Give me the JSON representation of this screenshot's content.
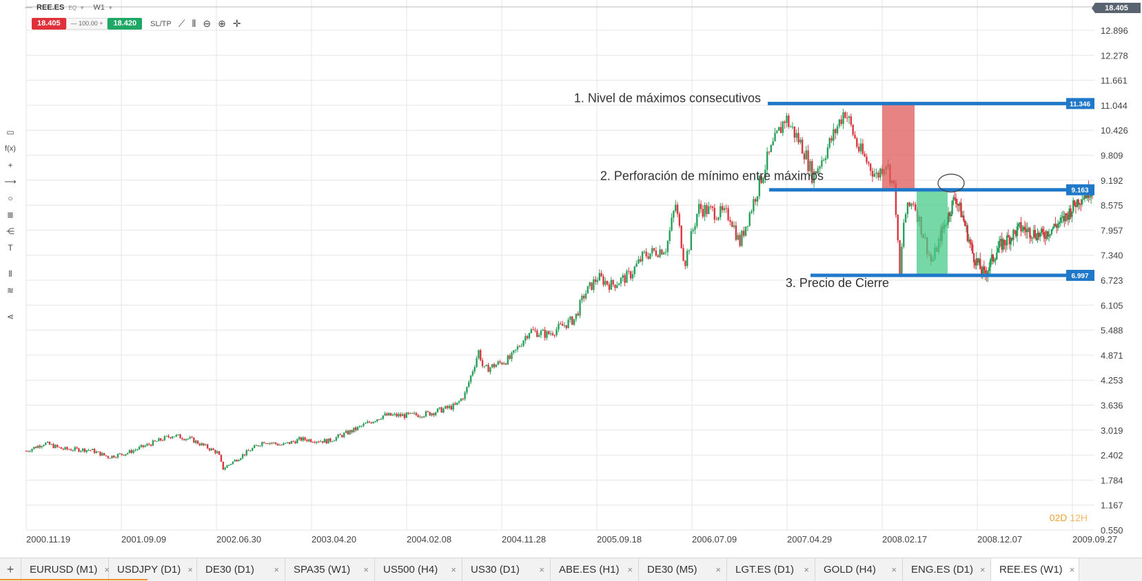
{
  "toolbar": {
    "symbol": "REE.ES",
    "symbol_type": "EQ",
    "timeframe": "W1",
    "sell_price": "18.405",
    "quantity": "100.00",
    "buy_price": "18.420",
    "sltp_label": "SL/TP",
    "current_price_tag": "18.405"
  },
  "tools": [
    "cursor-icon",
    "function-icon",
    "crosshair-icon",
    "line-icon",
    "circle-icon",
    "fibonacci-icon",
    "pitchfork-icon",
    "text-icon",
    "indicators-icon",
    "layers-icon",
    "share-icon"
  ],
  "timer": {
    "days": "02D",
    "hours": "12H"
  },
  "tabs": [
    {
      "label": "EURUSD (M1)",
      "active": false
    },
    {
      "label": "USDJPY (D1)",
      "active": false
    },
    {
      "label": "DE30 (D1)",
      "active": false
    },
    {
      "label": "SPA35 (W1)",
      "active": false
    },
    {
      "label": "US500 (H4)",
      "active": false
    },
    {
      "label": "US30 (D1)",
      "active": false
    },
    {
      "label": "ABE.ES (H1)",
      "active": false
    },
    {
      "label": "DE30 (M5)",
      "active": false
    },
    {
      "label": "LGT.ES (D1)",
      "active": false
    },
    {
      "label": "GOLD (H4)",
      "active": false
    },
    {
      "label": "ENG.ES (D1)",
      "active": false
    },
    {
      "label": "REE.ES (W1)",
      "active": true
    }
  ],
  "colors": {
    "up": "#27a05a",
    "down": "#d9363e",
    "level_line": "#1f78c8",
    "grid": "#e6e6e6",
    "red_zone": "#e05a5a",
    "green_zone": "#48c98a"
  },
  "chart_data": {
    "type": "candlestick",
    "ylim": [
      0.55,
      13.2
    ],
    "y_ticks": [
      "12.896",
      "12.278",
      "11.661",
      "11.044",
      "10.426",
      "9.809",
      "9.192",
      "8.575",
      "7.957",
      "7.340",
      "6.723",
      "6.105",
      "5.488",
      "4.871",
      "4.253",
      "3.636",
      "3.019",
      "2.402",
      "1.784",
      "1.167",
      "0.550"
    ],
    "x_ticks": [
      "2000.11.19",
      "2001.09.09",
      "2002.06.30",
      "2003.04.20",
      "2004.02.08",
      "2004.11.28",
      "2005.09.18",
      "2006.07.09",
      "2007.04.29",
      "2008.02.17",
      "2008.12.07",
      "2009.09.27"
    ],
    "price_path": [
      {
        "t": 0.0,
        "p": 2.55
      },
      {
        "t": 0.02,
        "p": 2.75
      },
      {
        "t": 0.04,
        "p": 2.6
      },
      {
        "t": 0.07,
        "p": 2.58
      },
      {
        "t": 0.09,
        "p": 2.4
      },
      {
        "t": 0.11,
        "p": 2.5
      },
      {
        "t": 0.16,
        "p": 2.95
      },
      {
        "t": 0.18,
        "p": 2.85
      },
      {
        "t": 0.21,
        "p": 2.5
      },
      {
        "t": 0.215,
        "p": 2.1
      },
      {
        "t": 0.24,
        "p": 2.5
      },
      {
        "t": 0.26,
        "p": 2.8
      },
      {
        "t": 0.28,
        "p": 2.7
      },
      {
        "t": 0.3,
        "p": 2.85
      },
      {
        "t": 0.33,
        "p": 2.8
      },
      {
        "t": 0.36,
        "p": 3.1
      },
      {
        "t": 0.39,
        "p": 3.45
      },
      {
        "t": 0.42,
        "p": 3.45
      },
      {
        "t": 0.44,
        "p": 3.5
      },
      {
        "t": 0.47,
        "p": 3.7
      },
      {
        "t": 0.48,
        "p": 4.0
      },
      {
        "t": 0.495,
        "p": 5.1
      },
      {
        "t": 0.5,
        "p": 4.6
      },
      {
        "t": 0.53,
        "p": 4.9
      },
      {
        "t": 0.55,
        "p": 5.6
      },
      {
        "t": 0.57,
        "p": 5.5
      },
      {
        "t": 0.6,
        "p": 5.9
      },
      {
        "t": 0.61,
        "p": 6.5
      },
      {
        "t": 0.625,
        "p": 6.95
      },
      {
        "t": 0.64,
        "p": 6.75
      },
      {
        "t": 0.66,
        "p": 7.0
      },
      {
        "t": 0.675,
        "p": 7.5
      },
      {
        "t": 0.7,
        "p": 7.7
      },
      {
        "t": 0.71,
        "p": 8.8
      },
      {
        "t": 0.72,
        "p": 7.3
      },
      {
        "t": 0.735,
        "p": 8.7
      },
      {
        "t": 0.77,
        "p": 8.5
      },
      {
        "t": 0.78,
        "p": 7.8
      },
      {
        "t": 0.79,
        "p": 8.5
      },
      {
        "t": 0.8,
        "p": 9.2
      },
      {
        "t": 0.81,
        "p": 9.9
      },
      {
        "t": 0.83,
        "p": 11.0
      },
      {
        "t": 0.85,
        "p": 10.2
      },
      {
        "t": 0.86,
        "p": 9.5
      },
      {
        "t": 0.88,
        "p": 10.4
      },
      {
        "t": 0.895,
        "p": 11.2
      },
      {
        "t": 0.91,
        "p": 10.2
      },
      {
        "t": 0.93,
        "p": 9.5
      },
      {
        "t": 0.94,
        "p": 9.9
      },
      {
        "t": 0.95,
        "p": 9.1
      },
      {
        "t": 0.955,
        "p": 6.9
      },
      {
        "t": 0.96,
        "p": 8.5
      },
      {
        "t": 0.97,
        "p": 8.9
      },
      {
        "t": 0.98,
        "p": 8.1
      },
      {
        "t": 0.99,
        "p": 7.3
      },
      {
        "t": 1.0,
        "p": 8.0
      }
    ],
    "right_segment": [
      {
        "t": 0.0,
        "p": 8.0
      },
      {
        "t": 0.04,
        "p": 9.0
      },
      {
        "t": 0.06,
        "p": 8.5
      },
      {
        "t": 0.09,
        "p": 7.5
      },
      {
        "t": 0.12,
        "p": 7.0
      },
      {
        "t": 0.16,
        "p": 7.7
      },
      {
        "t": 0.22,
        "p": 8.2
      },
      {
        "t": 0.28,
        "p": 8.0
      },
      {
        "t": 0.34,
        "p": 8.4
      },
      {
        "t": 0.38,
        "p": 8.9
      },
      {
        "t": 0.42,
        "p": 9.2
      }
    ],
    "levels": [
      {
        "value": 11.346,
        "label": "11.346",
        "annotation": "1. Nivel de máximos consecutivos"
      },
      {
        "value": 9.163,
        "label": "9.163",
        "annotation": "2. Perforación de mínimo entre máximos"
      },
      {
        "value": 6.997,
        "label": "6.997",
        "annotation": "3. Precio de Cierre"
      }
    ],
    "zones": [
      {
        "kind": "red",
        "from_date": "2008.02.17",
        "top": 11.346,
        "bottom": 9.163
      },
      {
        "kind": "green",
        "from_date": "2008.02.17",
        "top": 9.163,
        "bottom": 6.997
      }
    ]
  }
}
